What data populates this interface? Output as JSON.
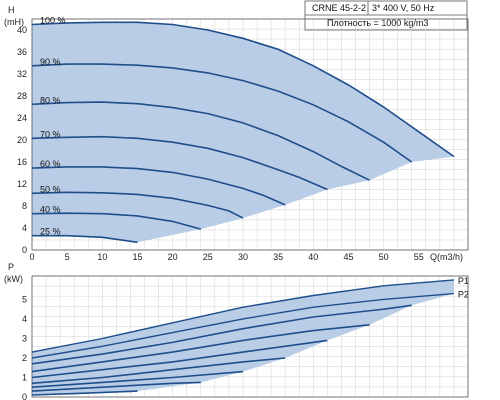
{
  "info": {
    "model": "CRNE 45-2-2",
    "supply": "3* 400 V, 50 Hz",
    "density": "Плотность = 1000 kg/m3"
  },
  "colors": {
    "fill": "#b9cde6",
    "curve": "#1f4e8c",
    "grid": "#c8c8c8",
    "frame": "#555555"
  },
  "chart_data": [
    {
      "type": "line",
      "title": "",
      "ylabel_line1": "H",
      "ylabel_line2": "(mH)",
      "xlabel": "Q(m3/h)",
      "xlim": [
        0,
        62
      ],
      "ylim": [
        0,
        42
      ],
      "x_ticks": [
        0,
        5,
        10,
        15,
        20,
        25,
        30,
        35,
        40,
        45,
        50,
        55
      ],
      "y_ticks": [
        0,
        4,
        8,
        12,
        16,
        20,
        24,
        28,
        32,
        36,
        40
      ],
      "grid": true,
      "series": [
        {
          "name": "100 %",
          "x": [
            0,
            5,
            10,
            15,
            20,
            25,
            30,
            35,
            40,
            45,
            50,
            55,
            60
          ],
          "y": [
            41.0,
            41.3,
            41.4,
            41.4,
            41.0,
            40.0,
            38.5,
            36.5,
            33.5,
            30.0,
            26.0,
            21.5,
            17.0
          ]
        },
        {
          "name": "90 %",
          "x": [
            0,
            5,
            10,
            15,
            20,
            25,
            30,
            35,
            40,
            45,
            50,
            54
          ],
          "y": [
            33.5,
            33.8,
            33.8,
            33.6,
            33.1,
            32.2,
            30.8,
            28.9,
            26.4,
            23.3,
            19.6,
            16.0
          ]
        },
        {
          "name": "80 %",
          "x": [
            0,
            5,
            10,
            15,
            20,
            25,
            30,
            35,
            40,
            44,
            48
          ],
          "y": [
            26.5,
            26.8,
            26.9,
            26.6,
            25.9,
            24.8,
            23.1,
            20.8,
            17.9,
            15.2,
            12.7
          ]
        },
        {
          "name": "70 %",
          "x": [
            0,
            5,
            10,
            15,
            20,
            25,
            30,
            35,
            38,
            42
          ],
          "y": [
            20.3,
            20.5,
            20.6,
            20.3,
            19.6,
            18.5,
            16.8,
            14.6,
            13.2,
            11.0
          ]
        },
        {
          "name": "60 %",
          "x": [
            0,
            5,
            10,
            15,
            20,
            25,
            30,
            33,
            36
          ],
          "y": [
            14.9,
            15.1,
            15.1,
            14.8,
            14.1,
            12.9,
            11.2,
            9.9,
            8.2
          ]
        },
        {
          "name": "50 %",
          "x": [
            0,
            5,
            10,
            15,
            20,
            25,
            28,
            30
          ],
          "y": [
            10.3,
            10.5,
            10.4,
            10.1,
            9.4,
            8.1,
            7.1,
            5.8
          ]
        },
        {
          "name": "40 %",
          "x": [
            0,
            5,
            10,
            15,
            20,
            24
          ],
          "y": [
            6.6,
            6.7,
            6.6,
            6.2,
            5.2,
            3.8
          ]
        },
        {
          "name": "25 %",
          "x": [
            0,
            5,
            10,
            15
          ],
          "y": [
            2.6,
            2.6,
            2.3,
            1.4
          ]
        }
      ]
    },
    {
      "type": "line",
      "title": "",
      "ylabel_line1": "P",
      "ylabel_line2": "(kW)",
      "xlabel": "",
      "xlim": [
        0,
        62
      ],
      "ylim": [
        0,
        6.2
      ],
      "y_ticks": [
        0,
        1,
        2,
        3,
        4,
        5
      ],
      "grid": true,
      "series": [
        {
          "name": "P1",
          "x": [
            0,
            10,
            20,
            30,
            40,
            50,
            60
          ],
          "y": [
            2.3,
            3.0,
            3.8,
            4.6,
            5.2,
            5.7,
            6.0
          ]
        },
        {
          "name": "P2",
          "x": [
            0,
            10,
            20,
            30,
            40,
            50,
            60
          ],
          "y": [
            2.0,
            2.6,
            3.3,
            4.0,
            4.6,
            5.0,
            5.3
          ]
        },
        {
          "name": "",
          "x": [
            0,
            10,
            20,
            30,
            40,
            50,
            54
          ],
          "y": [
            1.7,
            2.2,
            2.8,
            3.5,
            4.1,
            4.5,
            4.7
          ]
        },
        {
          "name": "",
          "x": [
            0,
            10,
            20,
            30,
            40,
            48
          ],
          "y": [
            1.3,
            1.8,
            2.3,
            2.9,
            3.4,
            3.7
          ]
        },
        {
          "name": "",
          "x": [
            0,
            10,
            20,
            30,
            42
          ],
          "y": [
            1.0,
            1.4,
            1.8,
            2.3,
            2.9
          ]
        },
        {
          "name": "",
          "x": [
            0,
            10,
            20,
            30,
            36
          ],
          "y": [
            0.7,
            1.0,
            1.4,
            1.8,
            2.0
          ]
        },
        {
          "name": "",
          "x": [
            0,
            10,
            20,
            30
          ],
          "y": [
            0.5,
            0.75,
            1.0,
            1.3
          ]
        },
        {
          "name": "",
          "x": [
            0,
            10,
            20,
            24
          ],
          "y": [
            0.3,
            0.5,
            0.7,
            0.75
          ]
        },
        {
          "name": "",
          "x": [
            0,
            8,
            15
          ],
          "y": [
            0.1,
            0.2,
            0.3
          ]
        }
      ]
    }
  ]
}
